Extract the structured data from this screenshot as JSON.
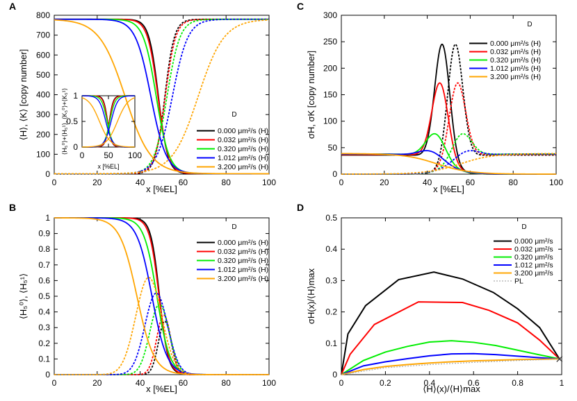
{
  "chart_data": [
    {
      "panel": "A",
      "type": "line",
      "xlabel": "x [%EL]",
      "ylabel": "⟨H⟩, ⟨K⟩ [copy number]",
      "xlim": [
        0,
        100
      ],
      "ylim": [
        0,
        800
      ],
      "xticks": [
        "0",
        "20",
        "40",
        "60",
        "80",
        "100"
      ],
      "yticks": [
        "0",
        "100",
        "200",
        "300",
        "400",
        "500",
        "600",
        "700",
        "800"
      ],
      "corner_label": "D",
      "legend": [
        "0.000 μm²/s (H)",
        "0.032 μm²/s (H)",
        "0.320 μm²/s (H)",
        "1.012 μm²/s (H)",
        "3.200 μm²/s (H)"
      ],
      "series": [
        {
          "name": "0.000 μm²/s",
          "color": "#000000",
          "H_midpoint": 48.5,
          "K_midpoint": 51.5,
          "width": 2.2,
          "max": 778
        },
        {
          "name": "0.032 μm²/s",
          "color": "#ff0000",
          "H_midpoint": 48.3,
          "K_midpoint": 51.7,
          "width": 2.4,
          "max": 778
        },
        {
          "name": "0.320 μm²/s",
          "color": "#00ee00",
          "H_midpoint": 47.5,
          "K_midpoint": 52.5,
          "width": 3.0,
          "max": 778
        },
        {
          "name": "1.012 μm²/s",
          "color": "#0000ff",
          "H_midpoint": 45.0,
          "K_midpoint": 55.0,
          "width": 3.6,
          "max": 778
        },
        {
          "name": "3.200 μm²/s",
          "color": "#ffa500",
          "H_midpoint": 33.0,
          "K_midpoint": 67.0,
          "width": 6.0,
          "max": 778
        }
      ],
      "inset": {
        "xlabel": "x [%EL]",
        "ylabel": "⟨H₅⁰⟩+⟨H₅¹⟩, ⟨K₅⁰⟩+⟨K₅¹⟩",
        "xticks": [
          "0",
          "50",
          "100"
        ],
        "yticks": [
          "0",
          "0.5",
          "1"
        ]
      }
    },
    {
      "panel": "B",
      "type": "line",
      "xlabel": "x [%EL]",
      "ylabel": "⟨H₅⁰⟩, ⟨H₅¹⟩",
      "xlim": [
        0,
        100
      ],
      "ylim": [
        0,
        1
      ],
      "xticks": [
        "0",
        "20",
        "40",
        "60",
        "80",
        "100"
      ],
      "yticks": [
        "0",
        "0.1",
        "0.2",
        "0.3",
        "0.4",
        "0.5",
        "0.6",
        "0.7",
        "0.8",
        "0.9",
        "1"
      ],
      "corner_label": "D",
      "legend": [
        "0.000 μm²/s (H)",
        "0.032 μm²/s (H)",
        "0.320 μm²/s (H)",
        "1.012 μm²/s (H)",
        "3.200 μm²/s (H)"
      ],
      "series": [
        {
          "name": "0.000 μm²/s",
          "color": "#000000",
          "H0_midpoint": 49.0,
          "width": 2.0,
          "H1_peak_x": 51.5,
          "H1_peak": 0.34
        },
        {
          "name": "0.032 μm²/s",
          "color": "#ff0000",
          "H0_midpoint": 48.8,
          "width": 2.2,
          "H1_peak_x": 51.0,
          "H1_peak": 0.38
        },
        {
          "name": "0.320 μm²/s",
          "color": "#00ee00",
          "H0_midpoint": 47.8,
          "width": 3.0,
          "H1_peak_x": 49.0,
          "H1_peak": 0.45
        },
        {
          "name": "1.012 μm²/s",
          "color": "#0000ff",
          "H0_midpoint": 45.5,
          "width": 3.5,
          "H1_peak_x": 47.5,
          "H1_peak": 0.52
        },
        {
          "name": "3.200 μm²/s",
          "color": "#ffa500",
          "H0_midpoint": 38.5,
          "width": 4.0,
          "H1_peak_x": 44.0,
          "H1_peak": 0.62
        }
      ]
    },
    {
      "panel": "C",
      "type": "line",
      "xlabel": "x [%EL]",
      "ylabel": "σH, σK [copy number]",
      "xlim": [
        0,
        100
      ],
      "ylim": [
        0,
        300
      ],
      "xticks": [
        "0",
        "20",
        "40",
        "60",
        "80",
        "100"
      ],
      "yticks": [
        "0",
        "50",
        "100",
        "150",
        "200",
        "250",
        "300"
      ],
      "corner_label": "D",
      "legend": [
        "0.000 μm²/s (H)",
        "0.032 μm²/s (H)",
        "0.320 μm²/s (H)",
        "1.012 μm²/s (H)",
        "3.200 μm²/s (H)"
      ],
      "series": [
        {
          "name": "0.000 μm²/s",
          "color": "#000000",
          "H_peak_x": 47,
          "H_peak": 255,
          "K_peak_x": 53,
          "K_peak": 255,
          "width": 3.5,
          "base": 36
        },
        {
          "name": "0.032 μm²/s",
          "color": "#ff0000",
          "H_peak_x": 46,
          "H_peak": 182,
          "K_peak_x": 54,
          "K_peak": 182,
          "width": 3.8,
          "base": 37
        },
        {
          "name": "0.320 μm²/s",
          "color": "#00ee00",
          "H_peak_x": 44,
          "H_peak": 86,
          "K_peak_x": 56,
          "K_peak": 86,
          "width": 4.5,
          "base": 38
        },
        {
          "name": "1.012 μm²/s",
          "color": "#0000ff",
          "H_peak_x": 42,
          "H_peak": 53,
          "K_peak_x": 58,
          "K_peak": 53,
          "width": 5.5,
          "base": 38
        },
        {
          "name": "3.200 μm²/s",
          "color": "#ffa500",
          "H_peak_x": 36,
          "H_peak": 40,
          "K_peak_x": 64,
          "K_peak": 40,
          "width": 8.0,
          "base": 39
        }
      ]
    },
    {
      "panel": "D",
      "type": "line",
      "xlabel": "⟨H⟩(x)/⟨H⟩max",
      "ylabel": "σH(x)/⟨H⟩max",
      "xlim": [
        0,
        1
      ],
      "ylim": [
        0,
        0.5
      ],
      "xticks": [
        "0",
        "0.2",
        "0.4",
        "0.6",
        "0.8",
        "1"
      ],
      "yticks": [
        "0",
        "0.1",
        "0.2",
        "0.3",
        "0.4",
        "0.5"
      ],
      "corner_label": "D",
      "legend": [
        "0.000 μm²/s",
        "0.032 μm²/s",
        "0.320 μm²/s",
        "1.012 μm²/s",
        "3.200 μm²/s",
        "PL"
      ],
      "series": [
        {
          "name": "0.000 μm²/s",
          "color": "#000000",
          "x": [
            0.0,
            0.03,
            0.11,
            0.26,
            0.42,
            0.55,
            0.69,
            0.8,
            0.9,
            0.99
          ],
          "y": [
            0.0,
            0.13,
            0.22,
            0.303,
            0.327,
            0.305,
            0.262,
            0.21,
            0.15,
            0.05
          ]
        },
        {
          "name": "0.032 μm²/s",
          "color": "#ff0000",
          "x": [
            0.0,
            0.04,
            0.15,
            0.35,
            0.55,
            0.67,
            0.8,
            0.9,
            0.99
          ],
          "y": [
            0.0,
            0.065,
            0.16,
            0.232,
            0.23,
            0.205,
            0.165,
            0.11,
            0.05
          ]
        },
        {
          "name": "0.320 μm²/s",
          "color": "#00ee00",
          "x": [
            0.0,
            0.1,
            0.2,
            0.3,
            0.4,
            0.5,
            0.6,
            0.7,
            0.8,
            0.9,
            0.99
          ],
          "y": [
            0.0,
            0.045,
            0.072,
            0.09,
            0.104,
            0.108,
            0.103,
            0.093,
            0.078,
            0.063,
            0.05
          ]
        },
        {
          "name": "1.012 μm²/s",
          "color": "#0000ff",
          "x": [
            0.0,
            0.1,
            0.2,
            0.3,
            0.4,
            0.5,
            0.6,
            0.7,
            0.8,
            0.9,
            0.99
          ],
          "y": [
            0.0,
            0.028,
            0.041,
            0.051,
            0.06,
            0.066,
            0.067,
            0.064,
            0.059,
            0.054,
            0.05
          ]
        },
        {
          "name": "3.200 μm²/s",
          "color": "#ffa500",
          "x": [
            0.0,
            0.1,
            0.2,
            0.3,
            0.4,
            0.5,
            0.6,
            0.7,
            0.8,
            0.9,
            0.99
          ],
          "y": [
            0.0,
            0.016,
            0.026,
            0.032,
            0.037,
            0.041,
            0.044,
            0.046,
            0.048,
            0.049,
            0.05
          ]
        },
        {
          "name": "PL",
          "color": "#aaaaaa",
          "dashed": true,
          "x": [
            0.0,
            0.2,
            0.4,
            0.6,
            0.8,
            1.0
          ],
          "y": [
            0.0,
            0.022,
            0.032,
            0.039,
            0.045,
            0.05
          ]
        }
      ]
    }
  ]
}
